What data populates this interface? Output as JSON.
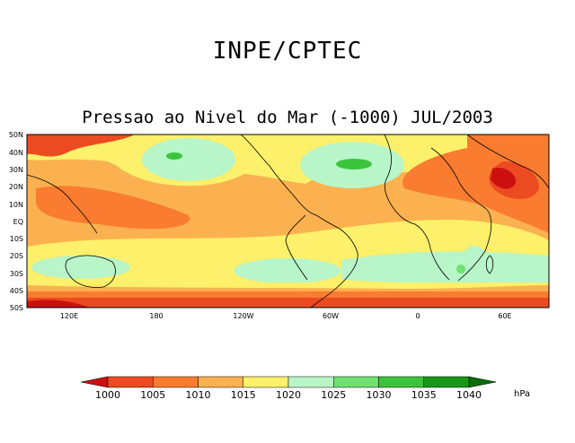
{
  "header": {
    "organization": "INPE/CPTEC",
    "title": "Pressao ao Nivel do Mar (-1000) JUL/2003"
  },
  "map": {
    "lat_labels": [
      "50N",
      "40N",
      "30N",
      "20N",
      "10N",
      "EQ",
      "10S",
      "20S",
      "30S",
      "40S",
      "50S"
    ],
    "lon_labels": [
      "120E",
      "180",
      "120W",
      "60W",
      "0",
      "60E"
    ]
  },
  "colorbar": {
    "levels": [
      "1000",
      "1005",
      "1010",
      "1015",
      "1020",
      "1025",
      "1030",
      "1035",
      "1040"
    ],
    "unit": "hPa",
    "colors": [
      "#cc1010",
      "#ec4a20",
      "#f97c30",
      "#fbb14f",
      "#fdf06a",
      "#b8f5c8",
      "#70e070",
      "#3cc43c",
      "#189818",
      "#0a6a0a"
    ]
  }
}
